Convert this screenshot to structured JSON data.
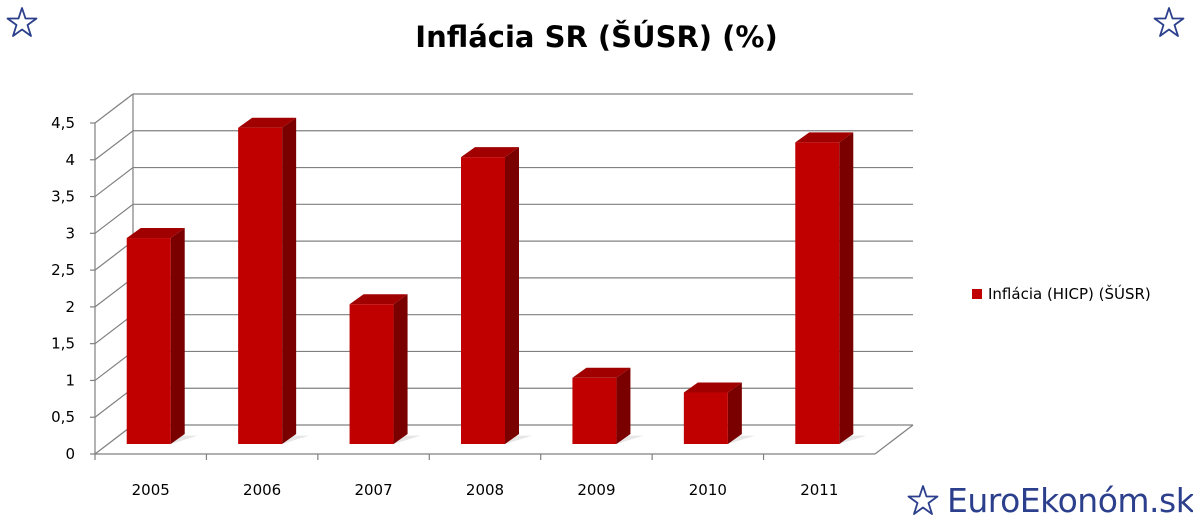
{
  "chart_data": {
    "type": "bar",
    "title": "Inflácia SR (ŠÚSR) (%)",
    "categories": [
      "2005",
      "2006",
      "2007",
      "2008",
      "2009",
      "2010",
      "2011"
    ],
    "series": [
      {
        "name": "Inflácia (HICP) (ŠÚSR)",
        "values": [
          2.8,
          4.3,
          1.9,
          3.9,
          0.9,
          0.7,
          4.1
        ]
      }
    ],
    "ylim": [
      0,
      4.5
    ],
    "yticks": [
      "0",
      "0,5",
      "1",
      "1,5",
      "2",
      "2,5",
      "3",
      "3,5",
      "4",
      "4,5"
    ],
    "grid": true,
    "legend": "right",
    "colors": {
      "bar_front": "#c00000",
      "bar_side": "#7a0000",
      "bar_top": "#a00000"
    }
  },
  "branding": {
    "site": "EuroEkonóm.sk"
  },
  "icons": {
    "corner": "star-outline-icon",
    "brand": "star-outline-icon"
  }
}
